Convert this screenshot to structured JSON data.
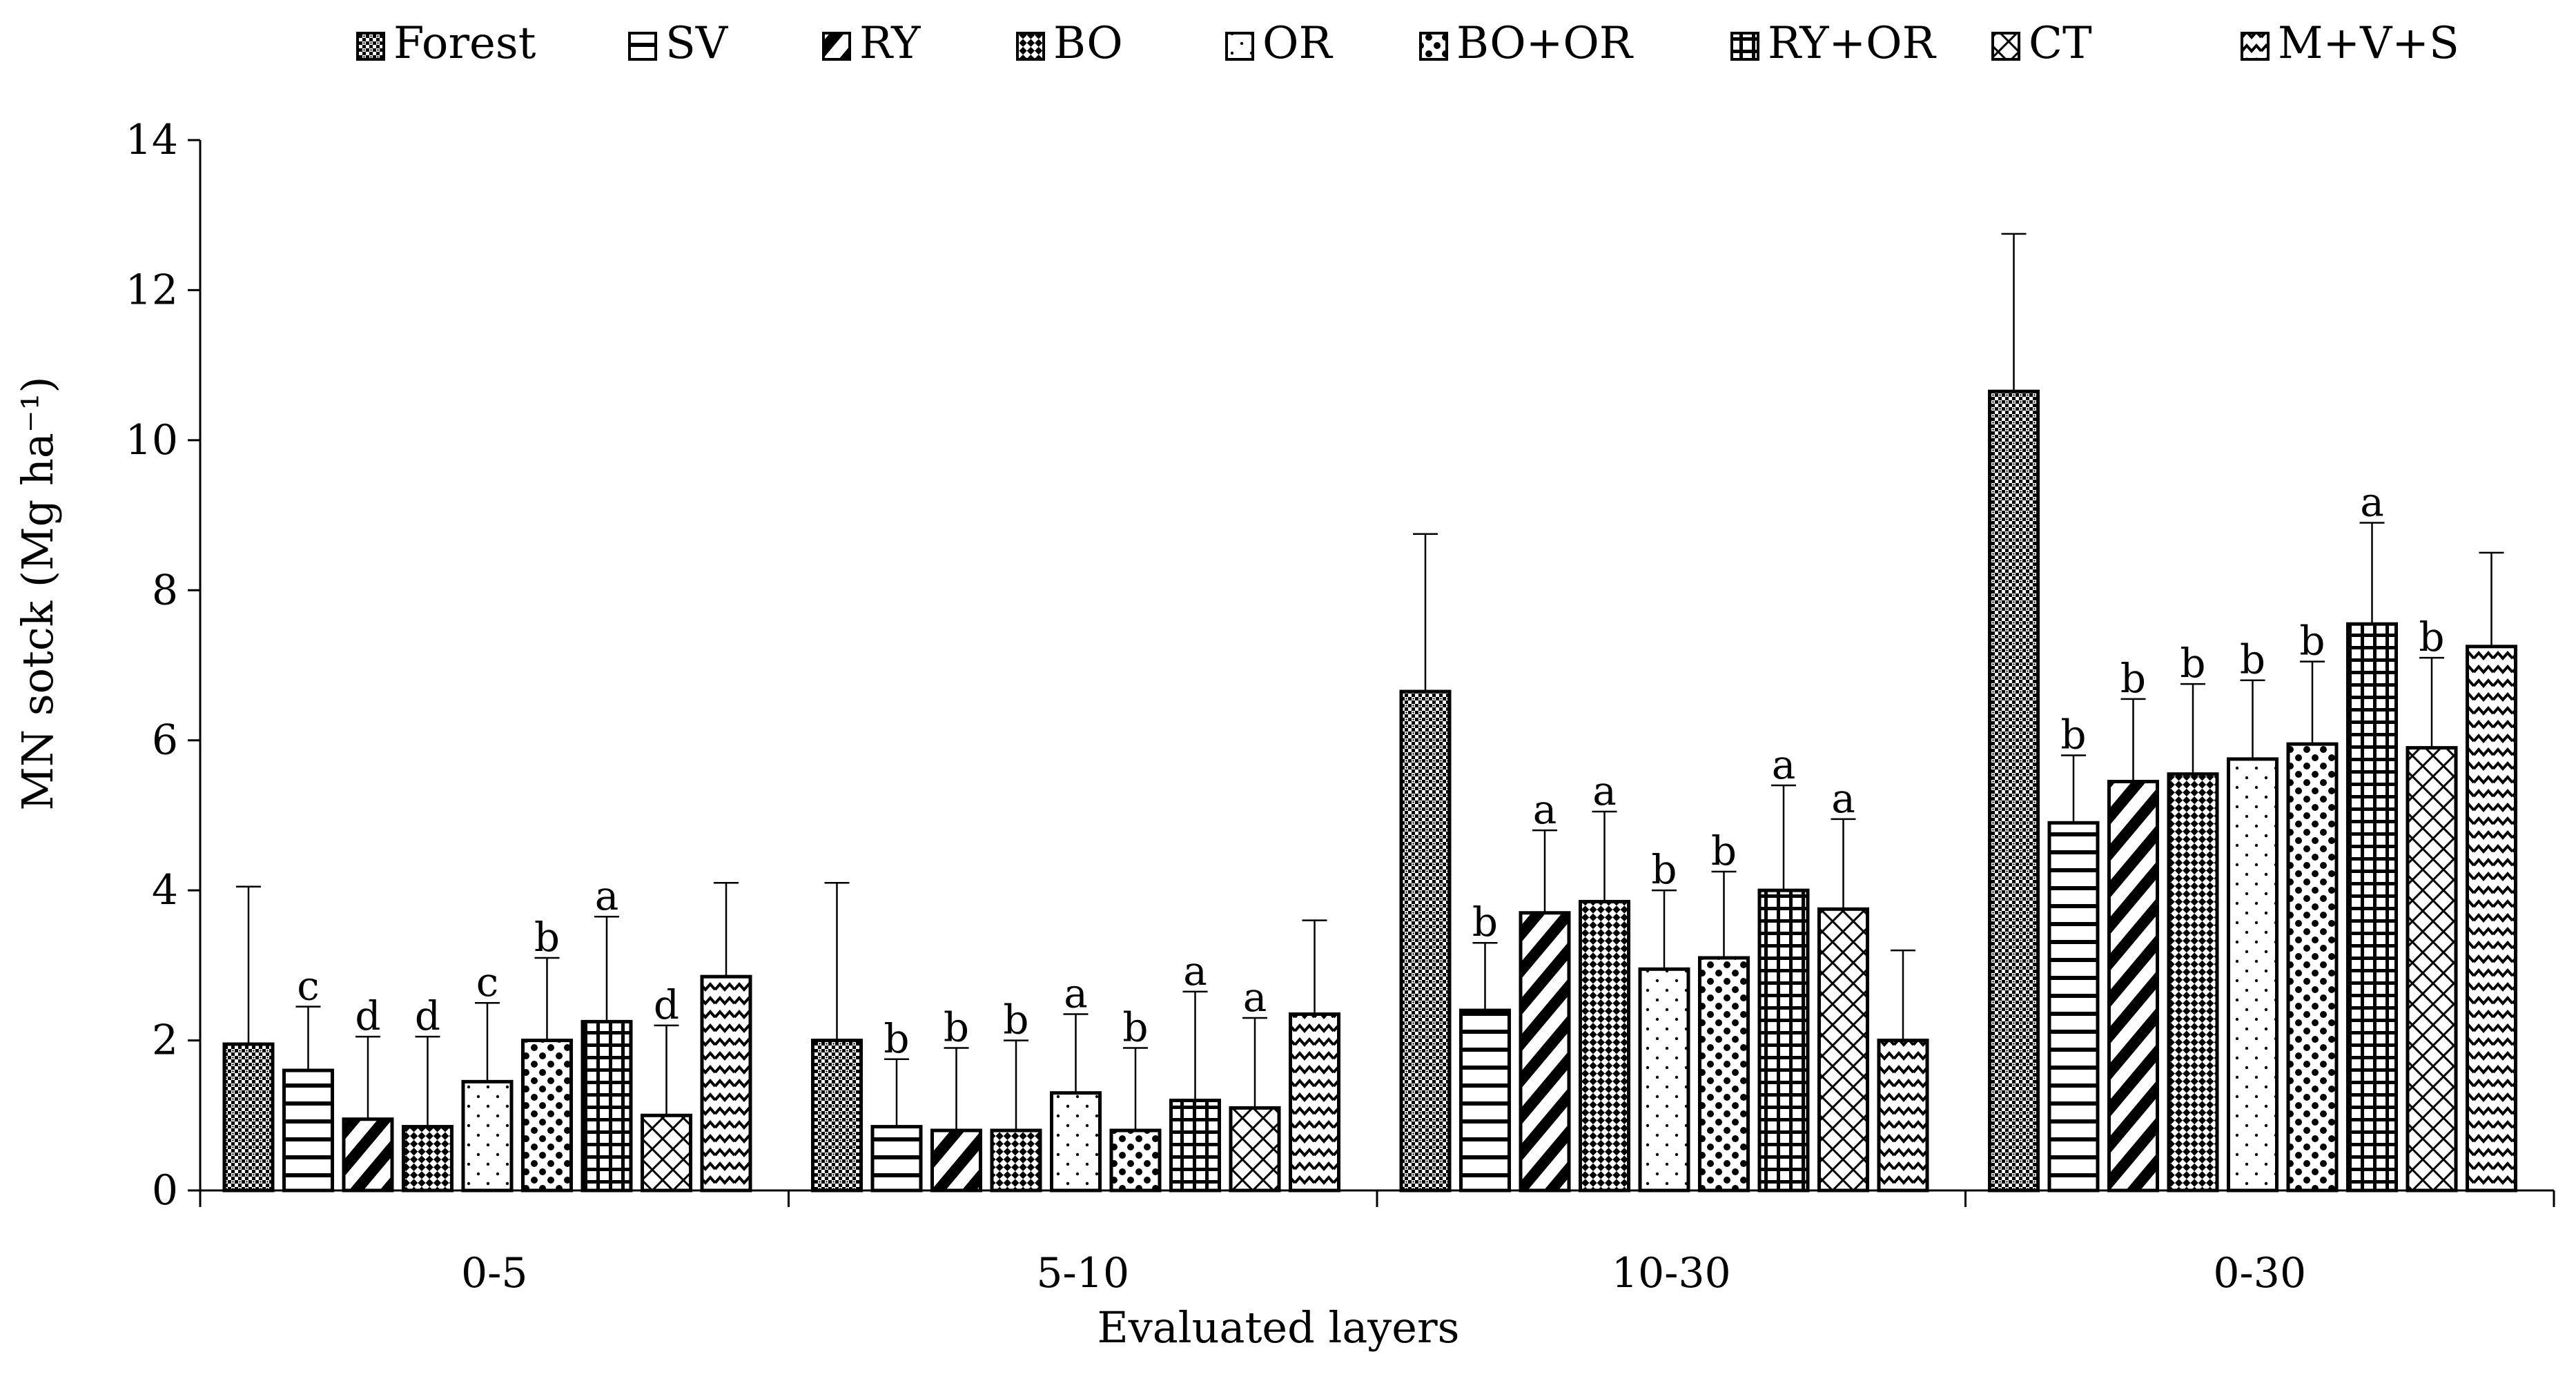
{
  "chart_data": {
    "type": "bar",
    "title": "",
    "xlabel": "Evaluated layers",
    "ylabel": "MN sotck (Mg ha⁻¹)",
    "ylim": [
      0,
      14
    ],
    "yticks": [
      0,
      2,
      4,
      6,
      8,
      10,
      12,
      14
    ],
    "grid": false,
    "legend_position": "top",
    "categories": [
      "0-5",
      "5-10",
      "10-30",
      "0-30"
    ],
    "series": [
      {
        "name": "Forest",
        "pattern": "dense-dots",
        "values": [
          1.95,
          2.0,
          6.65,
          10.65
        ],
        "errors": [
          2.1,
          2.1,
          2.1,
          2.1
        ],
        "letters": [
          "",
          "",
          "",
          ""
        ]
      },
      {
        "name": "SV",
        "pattern": "horizontal-lines",
        "values": [
          1.6,
          0.85,
          2.4,
          4.9
        ],
        "errors": [
          0.85,
          0.9,
          0.9,
          0.9
        ],
        "letters": [
          "c",
          "b",
          "b",
          "b"
        ]
      },
      {
        "name": "RY",
        "pattern": "diagonal-stripes",
        "values": [
          0.95,
          0.8,
          3.7,
          5.45
        ],
        "errors": [
          1.1,
          1.1,
          1.1,
          1.1
        ],
        "letters": [
          "d",
          "b",
          "a",
          "b"
        ]
      },
      {
        "name": "BO",
        "pattern": "checker",
        "values": [
          0.85,
          0.8,
          3.85,
          5.55
        ],
        "errors": [
          1.2,
          1.2,
          1.2,
          1.2
        ],
        "letters": [
          "d",
          "b",
          "a",
          "b"
        ]
      },
      {
        "name": "OR",
        "pattern": "sparse-dots",
        "values": [
          1.45,
          1.3,
          2.95,
          5.75
        ],
        "errors": [
          1.05,
          1.05,
          1.05,
          1.05
        ],
        "letters": [
          "c",
          "a",
          "b",
          "b"
        ]
      },
      {
        "name": "BO+OR",
        "pattern": "large-dots",
        "values": [
          2.0,
          0.8,
          3.1,
          5.95
        ],
        "errors": [
          1.1,
          1.1,
          1.15,
          1.1
        ],
        "letters": [
          "b",
          "b",
          "b",
          "b"
        ]
      },
      {
        "name": "RY+OR",
        "pattern": "grid",
        "values": [
          2.25,
          1.2,
          4.0,
          7.55
        ],
        "errors": [
          1.4,
          1.45,
          1.4,
          1.35
        ],
        "letters": [
          "a",
          "a",
          "a",
          "a"
        ]
      },
      {
        "name": "CT",
        "pattern": "diagonal-cross",
        "values": [
          1.0,
          1.1,
          3.75,
          5.9
        ],
        "errors": [
          1.2,
          1.2,
          1.2,
          1.2
        ],
        "letters": [
          "d",
          "a",
          "a",
          "b"
        ]
      },
      {
        "name": "M+V+S",
        "pattern": "zigzag",
        "values": [
          2.85,
          2.35,
          2.0,
          7.25
        ],
        "errors": [
          1.25,
          1.25,
          1.2,
          1.25
        ],
        "letters": [
          "",
          "",
          "",
          ""
        ]
      }
    ]
  }
}
